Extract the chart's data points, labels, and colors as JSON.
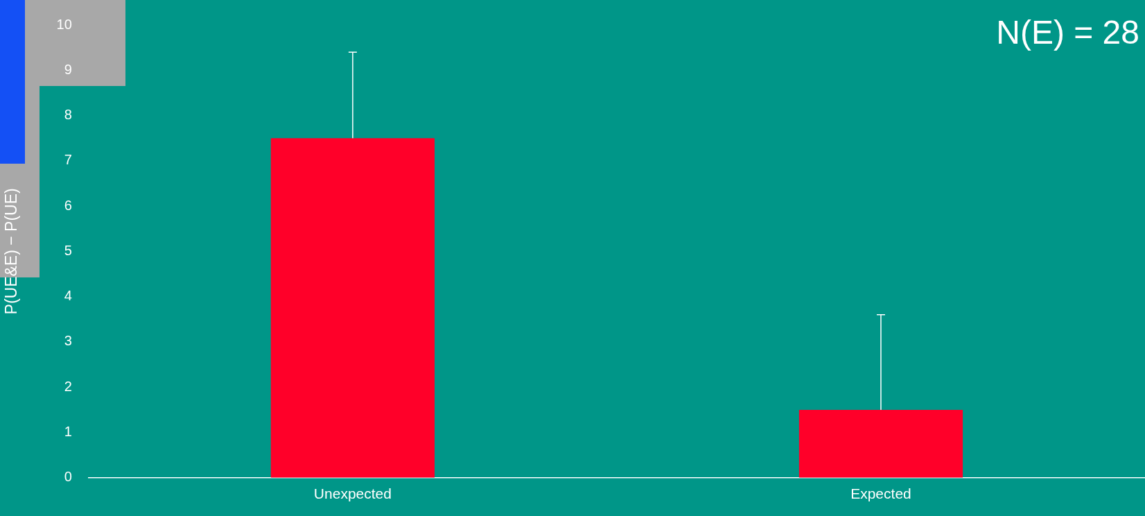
{
  "chart_data": {
    "type": "bar",
    "categories": [
      "Unexpected",
      "Expected"
    ],
    "values": [
      7.5,
      1.5
    ],
    "color": "#ff0029",
    "errors": [
      [
        7.5,
        9.4
      ],
      [
        1.5,
        3.6
      ]
    ],
    "ylim": [
      0,
      10
    ],
    "yticks": [
      0,
      1,
      2,
      3,
      4,
      5,
      6,
      7,
      8,
      9,
      10
    ],
    "grid": false,
    "legend": false,
    "ylabel": "P(UE&E) − P(UE)",
    "annotations": [
      "N(E) = 28"
    ]
  }
}
